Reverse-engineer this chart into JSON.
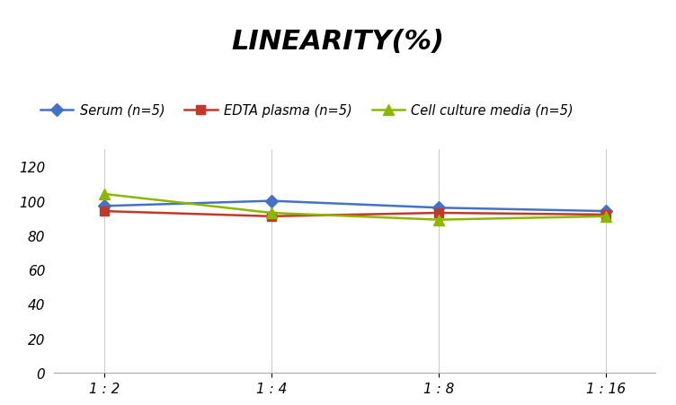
{
  "title": "LINEARITY(%)",
  "x_labels": [
    "1 : 2",
    "1 : 4",
    "1 : 8",
    "1 : 16"
  ],
  "x_positions": [
    0,
    1,
    2,
    3
  ],
  "series": [
    {
      "label": "Serum (n=5)",
      "values": [
        97,
        100,
        96,
        94
      ],
      "color": "#4472C4",
      "marker": "D",
      "marker_size": 7,
      "linewidth": 1.8
    },
    {
      "label": "EDTA plasma (n=5)",
      "values": [
        94,
        91,
        93,
        92
      ],
      "color": "#C0392B",
      "marker": "s",
      "marker_size": 7,
      "linewidth": 1.8
    },
    {
      "label": "Cell culture media (n=5)",
      "values": [
        104,
        93,
        89,
        91
      ],
      "color": "#8DB600",
      "marker": "^",
      "marker_size": 9,
      "linewidth": 1.8
    }
  ],
  "ylim": [
    0,
    130
  ],
  "yticks": [
    0,
    20,
    40,
    60,
    80,
    100,
    120
  ],
  "grid_color": "#CCCCCC",
  "background_color": "#FFFFFF",
  "title_fontsize": 22,
  "title_style": "italic",
  "title_weight": "bold",
  "legend_fontsize": 10.5,
  "tick_fontsize": 11
}
